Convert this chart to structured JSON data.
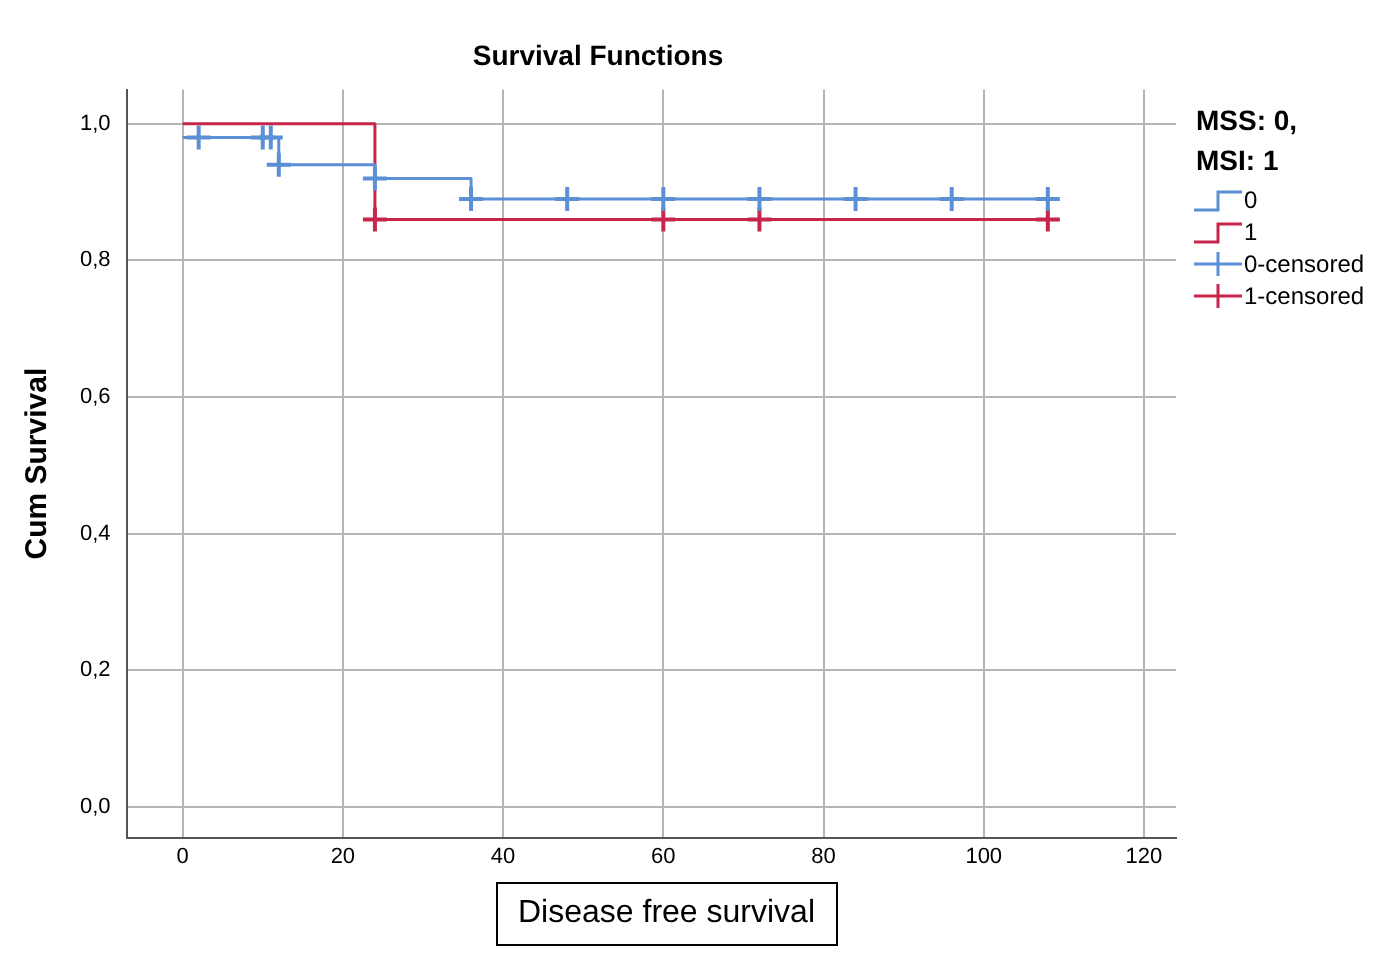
{
  "chart_data": {
    "type": "step",
    "title": "Survival Functions",
    "xlabel": "Disease free survival",
    "ylabel": "Cum Survival",
    "legend_title": "MSS: 0, MSI: 1",
    "legend": "right",
    "grid": true,
    "xlim": [
      -7,
      124
    ],
    "xticks": [
      0,
      20,
      40,
      60,
      80,
      100,
      120
    ],
    "ylim": [
      -0.045,
      1.05
    ],
    "yticks": [
      {
        "value": 0,
        "label": "0,0"
      },
      {
        "value": 0.2,
        "label": "0,2"
      },
      {
        "value": 0.4,
        "label": "0,4"
      },
      {
        "value": 0.6,
        "label": "0,6"
      },
      {
        "value": 0.8,
        "label": "0,8"
      },
      {
        "value": 1,
        "label": "1,0"
      }
    ],
    "series": [
      {
        "name": "0",
        "type": "step",
        "color": "#5b8fd6",
        "marker": "none",
        "x": [
          0,
          12,
          24,
          36,
          108
        ],
        "values": [
          0.98,
          0.94,
          0.92,
          0.89,
          0.89
        ]
      },
      {
        "name": "1",
        "type": "step",
        "color": "#c8254a",
        "marker": "none",
        "x": [
          0,
          24,
          108
        ],
        "values": [
          1,
          0.86,
          0.86
        ]
      },
      {
        "name": "0-censored",
        "type": "scatter",
        "color": "#5b8fd6",
        "marker": "cross",
        "x": [
          2,
          10,
          11,
          12,
          24,
          36,
          48,
          60,
          72,
          84,
          96,
          108
        ],
        "values": [
          0.98,
          0.98,
          0.98,
          0.94,
          0.92,
          0.89,
          0.89,
          0.89,
          0.89,
          0.89,
          0.89,
          0.89
        ]
      },
      {
        "name": "1-censored",
        "type": "scatter",
        "color": "#c8254a",
        "marker": "cross",
        "x": [
          24,
          60,
          72,
          108
        ],
        "values": [
          0.86,
          0.86,
          0.86,
          0.86
        ]
      }
    ]
  }
}
